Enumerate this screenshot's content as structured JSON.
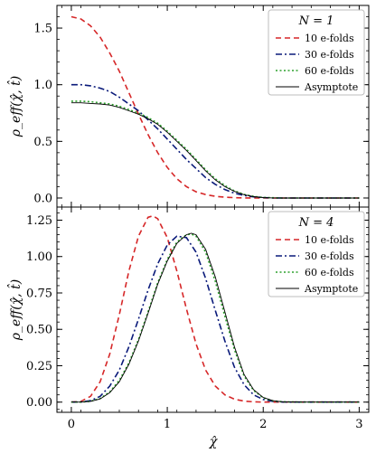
{
  "figure": {
    "xlabel": "χ̂"
  },
  "chart_data": [
    {
      "type": "line",
      "panel": "top",
      "ylabel": "ρ_eff(χ̂, t̂)",
      "xlim": [
        -0.15,
        3.1
      ],
      "ylim": [
        -0.08,
        1.7
      ],
      "yticks": [
        0.0,
        0.5,
        1.0,
        1.5
      ],
      "ytick_labels": [
        "0.0",
        "0.5",
        "1.0",
        "1.5"
      ],
      "grid": false,
      "legend": {
        "placement": "top-right",
        "title": "N = 1",
        "entries": [
          "10 e-folds",
          "30 e-folds",
          "60 e-folds",
          "Asymptote"
        ]
      },
      "series": [
        {
          "name": "10 e-folds",
          "color": "#d62728",
          "dash": "6,4",
          "x": [
            0,
            0.1,
            0.2,
            0.3,
            0.4,
            0.5,
            0.6,
            0.7,
            0.8,
            0.9,
            1.0,
            1.1,
            1.2,
            1.3,
            1.4,
            1.5,
            1.6,
            1.7,
            1.8,
            1.9,
            2.0,
            2.2,
            2.4,
            2.6,
            2.8,
            3.0
          ],
          "y": [
            1.6,
            1.58,
            1.52,
            1.42,
            1.28,
            1.12,
            0.93,
            0.74,
            0.56,
            0.4,
            0.27,
            0.17,
            0.1,
            0.055,
            0.03,
            0.015,
            0.007,
            0.003,
            0.001,
            0.0,
            0.0,
            0.0,
            0.0,
            0.0,
            0.0,
            0.0
          ]
        },
        {
          "name": "30 e-folds",
          "color": "#0a1a7a",
          "dash": "7,3,2,3",
          "x": [
            0,
            0.1,
            0.2,
            0.3,
            0.4,
            0.5,
            0.6,
            0.7,
            0.8,
            0.9,
            1.0,
            1.1,
            1.2,
            1.3,
            1.4,
            1.5,
            1.6,
            1.7,
            1.8,
            1.9,
            2.0,
            2.1,
            2.2,
            2.4,
            2.6,
            2.8,
            3.0
          ],
          "y": [
            1.0,
            1.0,
            0.99,
            0.97,
            0.94,
            0.89,
            0.83,
            0.77,
            0.69,
            0.61,
            0.52,
            0.43,
            0.34,
            0.26,
            0.18,
            0.12,
            0.075,
            0.042,
            0.022,
            0.01,
            0.004,
            0.001,
            0.0,
            0.0,
            0.0,
            0.0,
            0.0
          ]
        },
        {
          "name": "60 e-folds",
          "color": "#2ca02c",
          "dash": "2,2.5",
          "x": [
            0,
            0.1,
            0.2,
            0.3,
            0.4,
            0.5,
            0.6,
            0.7,
            0.8,
            0.9,
            1.0,
            1.1,
            1.2,
            1.3,
            1.4,
            1.5,
            1.6,
            1.7,
            1.8,
            1.9,
            2.0,
            2.1,
            2.2,
            2.4,
            2.6,
            2.8,
            3.0
          ],
          "y": [
            0.855,
            0.855,
            0.85,
            0.84,
            0.83,
            0.81,
            0.78,
            0.75,
            0.71,
            0.66,
            0.59,
            0.51,
            0.43,
            0.34,
            0.25,
            0.17,
            0.11,
            0.063,
            0.032,
            0.014,
            0.005,
            0.002,
            0.0,
            0.0,
            0.0,
            0.0,
            0.0
          ]
        },
        {
          "name": "Asymptote",
          "color": "#000000",
          "dash": "",
          "x": [
            0,
            0.1,
            0.2,
            0.3,
            0.4,
            0.5,
            0.6,
            0.7,
            0.8,
            0.9,
            1.0,
            1.1,
            1.2,
            1.3,
            1.4,
            1.5,
            1.6,
            1.7,
            1.8,
            1.9,
            2.0,
            2.1,
            2.2,
            2.4,
            2.6,
            2.8,
            3.0
          ],
          "y": [
            0.84,
            0.84,
            0.835,
            0.83,
            0.82,
            0.8,
            0.77,
            0.74,
            0.7,
            0.65,
            0.58,
            0.5,
            0.42,
            0.33,
            0.24,
            0.16,
            0.1,
            0.058,
            0.029,
            0.012,
            0.004,
            0.001,
            0.0,
            0.0,
            0.0,
            0.0,
            0.0
          ]
        }
      ]
    },
    {
      "type": "line",
      "panel": "bottom",
      "ylabel": "ρ_eff(χ̂, t̂)",
      "xlim": [
        -0.15,
        3.1
      ],
      "ylim": [
        -0.07,
        1.34
      ],
      "xticks": [
        0,
        1,
        2,
        3
      ],
      "xtick_labels": [
        "0",
        "1",
        "2",
        "3"
      ],
      "yticks": [
        0.0,
        0.25,
        0.5,
        0.75,
        1.0,
        1.25
      ],
      "ytick_labels": [
        "0.00",
        "0.25",
        "0.50",
        "0.75",
        "1.00",
        "1.25"
      ],
      "grid": false,
      "legend": {
        "placement": "top-right",
        "title": "N = 4",
        "entries": [
          "10 e-folds",
          "30 e-folds",
          "60 e-folds",
          "Asymptote"
        ]
      },
      "series": [
        {
          "name": "10 e-folds",
          "color": "#d62728",
          "dash": "6,4",
          "x": [
            0,
            0.1,
            0.2,
            0.3,
            0.4,
            0.5,
            0.6,
            0.7,
            0.8,
            0.85,
            0.9,
            1.0,
            1.1,
            1.2,
            1.3,
            1.4,
            1.5,
            1.6,
            1.7,
            1.8,
            1.9,
            2.0,
            2.2,
            2.4,
            2.6,
            2.8,
            3.0
          ],
          "y": [
            0.0,
            0.005,
            0.04,
            0.14,
            0.33,
            0.6,
            0.9,
            1.14,
            1.27,
            1.28,
            1.26,
            1.13,
            0.9,
            0.64,
            0.4,
            0.22,
            0.11,
            0.05,
            0.02,
            0.007,
            0.002,
            0.0,
            0.0,
            0.0,
            0.0,
            0.0,
            0.0
          ]
        },
        {
          "name": "30 e-folds",
          "color": "#0a1a7a",
          "dash": "7,3,2,3",
          "x": [
            0,
            0.1,
            0.2,
            0.3,
            0.4,
            0.5,
            0.6,
            0.7,
            0.8,
            0.9,
            1.0,
            1.1,
            1.2,
            1.3,
            1.4,
            1.5,
            1.6,
            1.7,
            1.8,
            1.9,
            2.0,
            2.1,
            2.2,
            2.4,
            2.6,
            2.8,
            3.0
          ],
          "y": [
            0.0,
            0.001,
            0.01,
            0.04,
            0.11,
            0.22,
            0.38,
            0.57,
            0.77,
            0.95,
            1.08,
            1.14,
            1.13,
            1.03,
            0.85,
            0.63,
            0.42,
            0.24,
            0.12,
            0.05,
            0.018,
            0.005,
            0.001,
            0.0,
            0.0,
            0.0,
            0.0
          ]
        },
        {
          "name": "60 e-folds",
          "color": "#2ca02c",
          "dash": "2,2.5",
          "x": [
            0,
            0.1,
            0.2,
            0.3,
            0.4,
            0.5,
            0.6,
            0.7,
            0.8,
            0.9,
            1.0,
            1.1,
            1.2,
            1.25,
            1.3,
            1.4,
            1.5,
            1.6,
            1.7,
            1.8,
            1.9,
            2.0,
            2.1,
            2.2,
            2.4,
            2.6,
            2.8,
            3.0
          ],
          "y": [
            0.0,
            0.0,
            0.006,
            0.025,
            0.07,
            0.15,
            0.27,
            0.43,
            0.62,
            0.82,
            0.98,
            1.1,
            1.15,
            1.155,
            1.14,
            1.03,
            0.83,
            0.59,
            0.36,
            0.18,
            0.08,
            0.03,
            0.009,
            0.002,
            0.0,
            0.0,
            0.0,
            0.0
          ]
        },
        {
          "name": "Asymptote",
          "color": "#000000",
          "dash": "",
          "x": [
            0,
            0.1,
            0.2,
            0.3,
            0.4,
            0.5,
            0.6,
            0.7,
            0.8,
            0.9,
            1.0,
            1.1,
            1.2,
            1.25,
            1.3,
            1.4,
            1.5,
            1.6,
            1.7,
            1.8,
            1.9,
            2.0,
            2.1,
            2.2,
            2.4,
            2.6,
            2.8,
            3.0
          ],
          "y": [
            0.0,
            0.0,
            0.005,
            0.022,
            0.065,
            0.14,
            0.26,
            0.42,
            0.61,
            0.81,
            0.97,
            1.09,
            1.15,
            1.16,
            1.15,
            1.05,
            0.86,
            0.62,
            0.38,
            0.19,
            0.085,
            0.032,
            0.01,
            0.002,
            0.0,
            0.0,
            0.0,
            0.0
          ]
        }
      ]
    }
  ]
}
